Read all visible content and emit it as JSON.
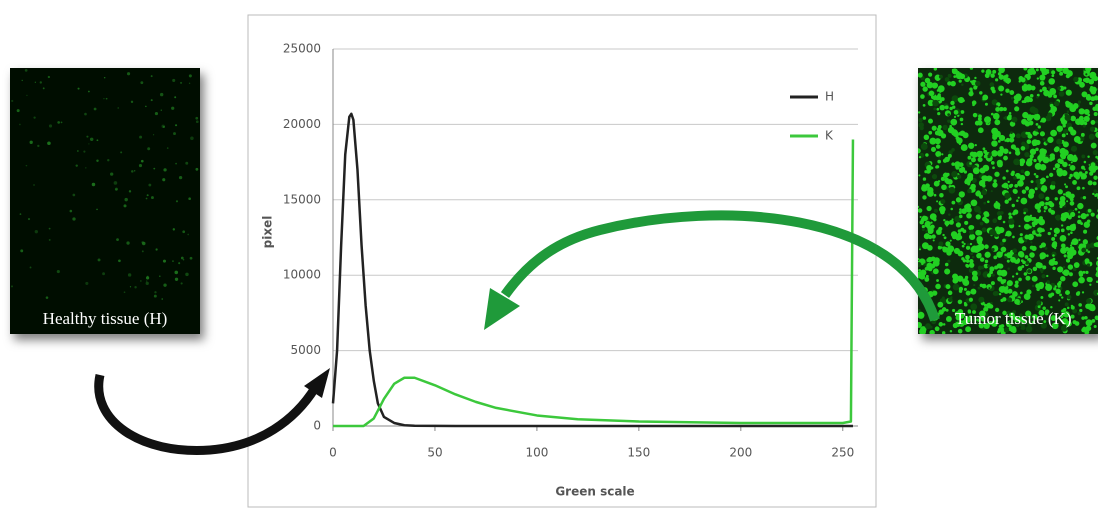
{
  "left_image": {
    "label": "Healthy tissue (H)"
  },
  "right_image": {
    "label": "Tumor tissue (K)"
  },
  "chart_data": {
    "type": "line",
    "xlabel": "Green scale",
    "ylabel": "pixel",
    "xlim": [
      0,
      256
    ],
    "xticks": [
      0,
      50,
      100,
      150,
      200,
      250
    ],
    "ylim": [
      0,
      25000
    ],
    "yticks": [
      0,
      5000,
      10000,
      15000,
      20000,
      25000
    ],
    "grid": true,
    "legend": "upper right",
    "series": [
      {
        "name": "H",
        "color": "#222222",
        "x": [
          0,
          2,
          4,
          6,
          8,
          9,
          10,
          12,
          14,
          16,
          18,
          20,
          22,
          25,
          30,
          35,
          40,
          60,
          100,
          150,
          200,
          255
        ],
        "values": [
          1500,
          5000,
          12000,
          18000,
          20500,
          20700,
          20300,
          17000,
          12000,
          8000,
          5000,
          3000,
          1500,
          600,
          200,
          50,
          20,
          0,
          0,
          0,
          0,
          0
        ]
      },
      {
        "name": "K",
        "color": "#3cc83c",
        "x": [
          0,
          15,
          20,
          25,
          30,
          35,
          40,
          50,
          60,
          70,
          80,
          100,
          120,
          150,
          200,
          250,
          254,
          255
        ],
        "values": [
          0,
          0,
          500,
          1800,
          2800,
          3200,
          3200,
          2700,
          2100,
          1600,
          1200,
          700,
          450,
          300,
          200,
          200,
          300,
          19000
        ]
      }
    ]
  }
}
